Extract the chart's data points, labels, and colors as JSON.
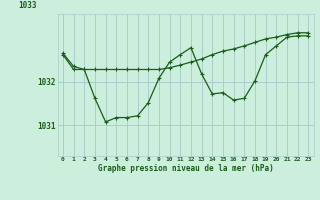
{
  "xlabel": "Graphe pression niveau de la mer (hPa)",
  "bg_color": "#cceedd",
  "grid_color": "#aacccc",
  "line_color": "#1a5c1a",
  "x_ticks": [
    0,
    1,
    2,
    3,
    4,
    5,
    6,
    7,
    8,
    9,
    10,
    11,
    12,
    13,
    14,
    15,
    16,
    17,
    18,
    19,
    20,
    21,
    22,
    23
  ],
  "ylim": [
    1030.3,
    1033.55
  ],
  "yticks": [
    1031,
    1032
  ],
  "series1": [
    1032.65,
    1032.35,
    1032.28,
    1031.62,
    1031.08,
    1031.18,
    1031.18,
    1031.22,
    1031.52,
    1032.08,
    1032.45,
    1032.62,
    1032.78,
    1032.18,
    1031.72,
    1031.75,
    1031.58,
    1031.62,
    1032.02,
    1032.62,
    1032.82,
    1033.02,
    1033.05,
    1033.05
  ],
  "series2": [
    1032.62,
    1032.28,
    1032.28,
    1032.28,
    1032.28,
    1032.28,
    1032.28,
    1032.28,
    1032.28,
    1032.28,
    1032.32,
    1032.38,
    1032.45,
    1032.52,
    1032.62,
    1032.7,
    1032.75,
    1032.82,
    1032.9,
    1032.98,
    1033.02,
    1033.08,
    1033.12,
    1033.12
  ]
}
